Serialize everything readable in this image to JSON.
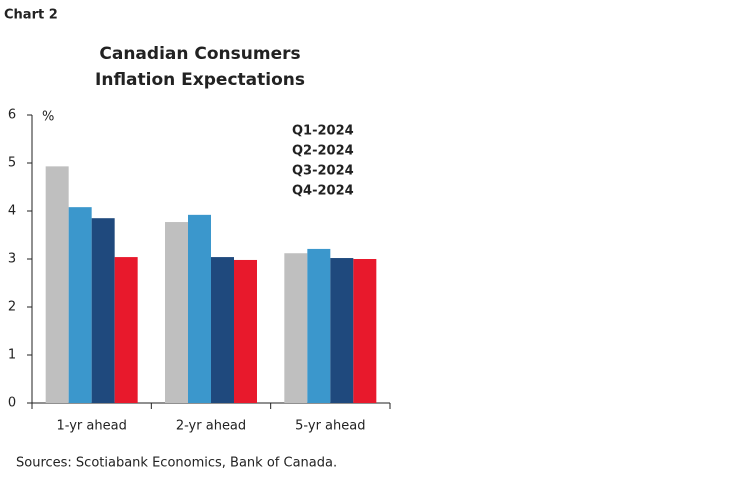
{
  "chart_data": {
    "type": "bar",
    "label": "Chart 2",
    "title": [
      "Canadian Consumers",
      "Inflation Expectations"
    ],
    "y_unit": "%",
    "categories": [
      "1-yr ahead",
      "2-yr ahead",
      "5-yr ahead"
    ],
    "series": [
      {
        "name": "Q1-2024",
        "color": "#bfbfbf",
        "values": [
          4.93,
          3.77,
          3.12
        ]
      },
      {
        "name": "Q2-2024",
        "color": "#3b97cc",
        "values": [
          4.08,
          3.92,
          3.21
        ]
      },
      {
        "name": "Q3-2024",
        "color": "#1f497d",
        "values": [
          3.85,
          3.04,
          3.02
        ]
      },
      {
        "name": "Q4-2024",
        "color": "#e8192c",
        "values": [
          3.04,
          2.98,
          3.0
        ]
      }
    ],
    "ylim": [
      0,
      6
    ],
    "yticks": [
      0,
      1,
      2,
      3,
      4,
      5,
      6
    ],
    "source": "Sources: Scotiabank Economics, Bank of Canada."
  }
}
